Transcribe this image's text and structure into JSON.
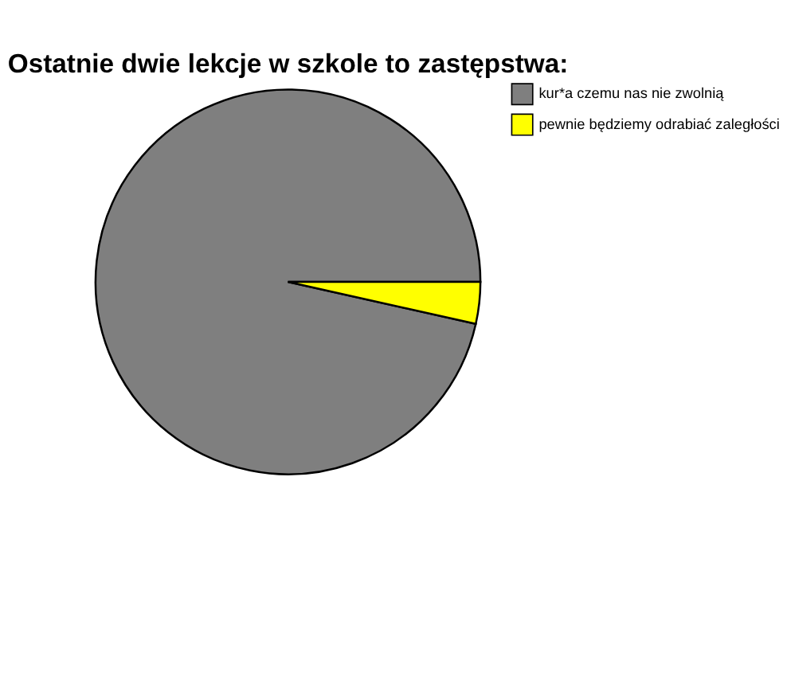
{
  "chart_data": {
    "type": "pie",
    "title": "Ostatnie dwie lekcje w szkole to zastępstwa:",
    "categories": [
      "kur*a czemu nas nie zwolnią",
      "pewnie będziemy odrabiać zaległości"
    ],
    "values": [
      96.5,
      3.5
    ],
    "colors": [
      "#7f7f7f",
      "#ffff00"
    ],
    "legend": "right"
  }
}
